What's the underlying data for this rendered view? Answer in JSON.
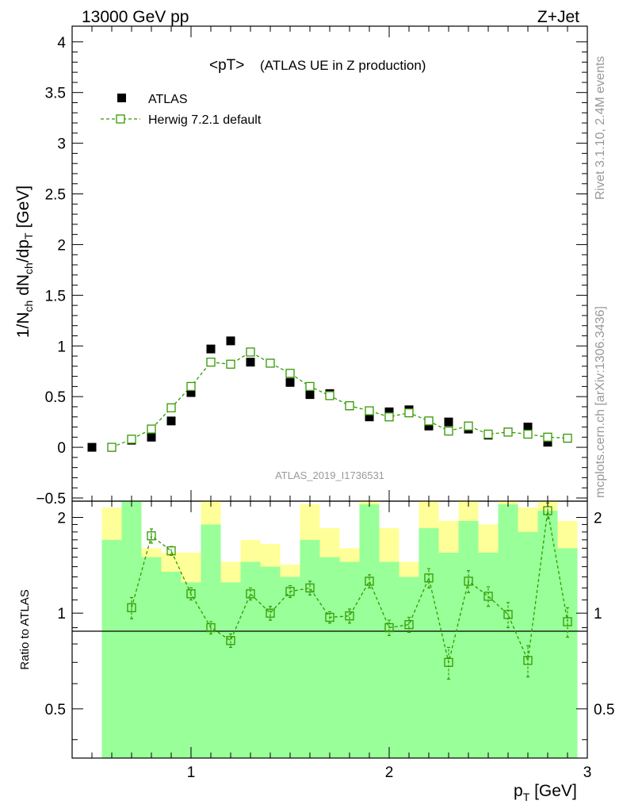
{
  "header": {
    "left": "13000 GeV pp",
    "right": "Z+Jet"
  },
  "side_labels": {
    "rivet": "Rivet 3.1.10,  2.4M events",
    "mcplots": "mcplots.cern.ch [arXiv:1306.3436]"
  },
  "watermark": "ATLAS_2019_I1736531",
  "chart_data": [
    {
      "type": "scatter",
      "title": "<pT> (ATLAS UE in Z production)",
      "title_main": "<pT>",
      "title_sub": "(ATLAS UE in Z production)",
      "ylabel": "1/N_ch dN_ch/dp_T [GeV]",
      "xlim": [
        0.4,
        3.0
      ],
      "ylim": [
        -0.5,
        4.1
      ],
      "y_ticks": [
        "-0.5",
        "0",
        "0.5",
        "1",
        "1.5",
        "2",
        "2.5",
        "3",
        "3.5",
        "4"
      ],
      "y_tick_values": [
        -0.5,
        0,
        0.5,
        1,
        1.5,
        2,
        2.5,
        3,
        3.5,
        4
      ],
      "legend_position": "top-left",
      "x": [
        0.5,
        0.6,
        0.7,
        0.8,
        0.9,
        1.0,
        1.1,
        1.2,
        1.3,
        1.4,
        1.5,
        1.6,
        1.7,
        1.8,
        1.9,
        2.0,
        2.1,
        2.2,
        2.3,
        2.4,
        2.5,
        2.6,
        2.7,
        2.8,
        2.9
      ],
      "series": [
        {
          "name": "ATLAS",
          "color": "#000000",
          "marker": "filled-square",
          "values": [
            0.0,
            0.0,
            0.07,
            0.1,
            0.26,
            0.54,
            0.97,
            1.05,
            0.84,
            0.83,
            0.64,
            0.52,
            0.53,
            0.41,
            0.3,
            0.35,
            0.37,
            0.21,
            0.25,
            0.18,
            0.12,
            0.15,
            0.2,
            0.05,
            0.09
          ]
        },
        {
          "name": "Herwig 7.2.1 default",
          "color": "#339900",
          "marker": "open-square",
          "line": "dashed",
          "values": [
            null,
            0.0,
            0.08,
            0.18,
            0.39,
            0.6,
            0.84,
            0.82,
            0.94,
            0.83,
            0.73,
            0.6,
            0.51,
            0.41,
            0.36,
            0.3,
            0.34,
            0.26,
            0.16,
            0.21,
            0.13,
            0.15,
            0.13,
            0.1,
            0.09
          ]
        }
      ]
    },
    {
      "type": "scatter",
      "ylabel": "Ratio to ATLAS",
      "xlabel": "p_T [GeV]",
      "xlim": [
        0.4,
        3.0
      ],
      "ylim": [
        0.35,
        2.25
      ],
      "x_ticks": [
        "1",
        "2",
        "3"
      ],
      "x_tick_values": [
        1,
        2,
        3
      ],
      "y_ticks": [
        "0.5",
        "1",
        "2"
      ],
      "y_tick_values": [
        0.5,
        1,
        2
      ],
      "reference_line": 1,
      "band_bins": [
        0.6,
        0.7,
        0.8,
        0.9,
        1.0,
        1.1,
        1.2,
        1.3,
        1.4,
        1.5,
        1.6,
        1.7,
        1.8,
        1.9,
        2.0,
        2.1,
        2.2,
        2.3,
        2.4,
        2.5,
        2.6,
        2.7,
        2.8,
        2.9
      ],
      "green_band": [
        [
          0.1,
          1.7
        ],
        [
          0.1,
          2.3
        ],
        [
          0.1,
          1.5
        ],
        [
          0.1,
          1.35
        ],
        [
          0.1,
          1.25
        ],
        [
          0.1,
          1.9
        ],
        [
          0.1,
          1.25
        ],
        [
          0.1,
          1.45
        ],
        [
          0.1,
          1.4
        ],
        [
          0.1,
          1.3
        ],
        [
          0.1,
          1.7
        ],
        [
          0.1,
          1.5
        ],
        [
          0.1,
          1.45
        ],
        [
          0.1,
          2.2
        ],
        [
          0.1,
          1.45
        ],
        [
          0.1,
          1.3
        ],
        [
          0.1,
          1.85
        ],
        [
          0.1,
          1.55
        ],
        [
          0.1,
          1.95
        ],
        [
          0.1,
          1.55
        ],
        [
          0.1,
          2.2
        ],
        [
          0.1,
          1.8
        ],
        [
          0.1,
          2.1
        ],
        [
          0.1,
          1.6
        ]
      ],
      "yellow_band": [
        [
          0.1,
          2.15
        ],
        [
          0.1,
          2.3
        ],
        [
          0.1,
          1.6
        ],
        [
          0.1,
          1.55
        ],
        [
          0.1,
          1.55
        ],
        [
          0.1,
          2.3
        ],
        [
          0.1,
          1.45
        ],
        [
          0.1,
          1.7
        ],
        [
          0.1,
          1.65
        ],
        [
          0.1,
          1.42
        ],
        [
          0.1,
          2.2
        ],
        [
          0.1,
          1.85
        ],
        [
          0.1,
          1.6
        ],
        [
          0.1,
          2.3
        ],
        [
          0.1,
          1.85
        ],
        [
          0.1,
          1.45
        ],
        [
          0.1,
          2.3
        ],
        [
          0.1,
          1.95
        ],
        [
          0.1,
          2.3
        ],
        [
          0.1,
          1.9
        ],
        [
          0.1,
          2.25
        ],
        [
          0.1,
          2.15
        ],
        [
          0.1,
          2.3
        ],
        [
          0.1,
          1.95
        ]
      ],
      "band_gaps": [
        [
          0.6,
          0.7
        ],
        [
          0.7,
          0.72
        ],
        [
          0.45,
          0.47
        ]
      ],
      "series": [
        {
          "name": "Herwig 7.2.1 default",
          "color": "#339900",
          "marker": "open-square",
          "line": "dashed",
          "x": [
            0.7,
            0.8,
            0.9,
            1.0,
            1.1,
            1.2,
            1.3,
            1.4,
            1.5,
            1.6,
            1.7,
            1.8,
            1.9,
            2.0,
            2.1,
            2.2,
            2.3,
            2.4,
            2.5,
            2.6,
            2.7,
            2.8,
            2.9
          ],
          "values": [
            1.04,
            1.75,
            1.57,
            1.15,
            0.9,
            0.82,
            1.15,
            1.0,
            1.17,
            1.2,
            0.97,
            0.98,
            1.26,
            0.9,
            0.92,
            1.29,
            0.7,
            1.26,
            1.13,
            0.99,
            0.71,
            2.1,
            0.94
          ],
          "err": [
            0.08,
            0.09,
            0.05,
            0.05,
            0.04,
            0.04,
            0.05,
            0.05,
            0.05,
            0.06,
            0.04,
            0.05,
            0.06,
            0.05,
            0.05,
            0.09,
            0.08,
            0.1,
            0.08,
            0.09,
            0.08,
            0.12,
            0.1
          ]
        }
      ]
    }
  ]
}
